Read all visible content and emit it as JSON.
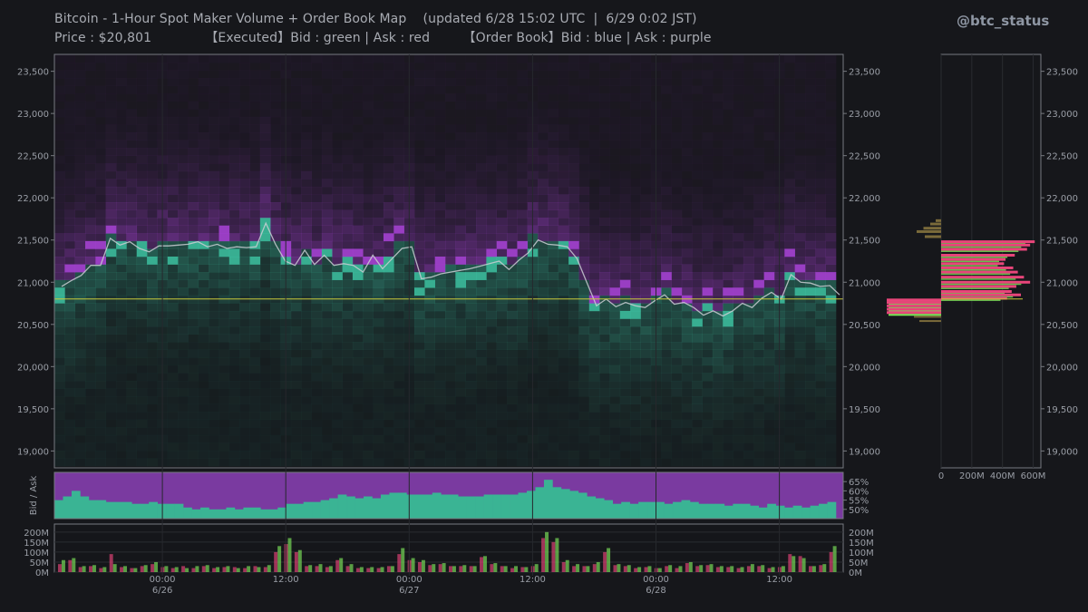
{
  "header": {
    "title": "Bitcoin - 1-Hour Spot Maker Volume + Order Book Map    (updated 6/28 15:02 UTC  |  6/29 0:02 JST)",
    "subtitle": "Price : $20,801             【Executed】Bid : green | Ask : red        【Order Book】Bid : blue | Ask : purple",
    "handle": "@btc_status"
  },
  "colors": {
    "background": "#16171b",
    "bid_executed": "#7ee85a",
    "ask_executed": "#e8457a",
    "book_bid": "#3ec9a7",
    "book_ask": "#a743d6",
    "price_line": "#c9cdd2",
    "current_price": "#c9c93a"
  },
  "chart_data": [
    {
      "id": "main",
      "type": "heatmap",
      "title": "",
      "ylim": [
        18800,
        23700
      ],
      "ytick_labels": [
        "23,500",
        "23,000",
        "22,500",
        "22,000",
        "21,500",
        "21,000",
        "20,500",
        "20,000",
        "19,500",
        "19,000"
      ],
      "yticks": [
        23500,
        23000,
        22500,
        22000,
        21500,
        21000,
        20500,
        20000,
        19500,
        19000
      ],
      "xlim": [
        0,
        76
      ],
      "current_price": 20801,
      "price_series": [
        20950,
        21020,
        21080,
        21200,
        21200,
        21520,
        21440,
        21480,
        21400,
        21360,
        21430,
        21430,
        21440,
        21450,
        21480,
        21420,
        21450,
        21400,
        21420,
        21410,
        21420,
        21700,
        21450,
        21250,
        21200,
        21380,
        21210,
        21320,
        21200,
        21220,
        21200,
        21120,
        21320,
        21160,
        21280,
        21400,
        21420,
        21040,
        21060,
        21100,
        21120,
        21140,
        21160,
        21190,
        21220,
        21250,
        21150,
        21260,
        21350,
        21500,
        21450,
        21440,
        21420,
        21280,
        21000,
        20720,
        20800,
        20710,
        20760,
        20720,
        20700,
        20780,
        20850,
        20740,
        20760,
        20700,
        20610,
        20660,
        20600,
        20660,
        20750,
        20700,
        20810,
        20880,
        20800,
        21090,
        21000,
        20990,
        20950,
        20960,
        20850
      ]
    },
    {
      "id": "book_ratio",
      "type": "area",
      "ylabel": "Bid / Ask",
      "ylim": [
        45,
        70
      ],
      "ytick_labels": [
        "65%",
        "60%",
        "55%",
        "50%"
      ],
      "yticks": [
        65,
        60,
        55,
        50
      ],
      "series": [
        {
          "values": [
            55,
            57,
            60,
            57,
            55,
            55,
            54,
            54,
            54,
            53,
            53,
            54,
            53,
            53,
            53,
            51,
            50,
            51,
            50,
            50,
            51,
            50,
            51,
            51,
            50,
            50,
            51,
            53,
            53,
            54,
            54,
            55,
            56,
            58,
            57,
            56,
            57,
            56,
            58,
            59,
            59,
            58,
            58,
            58,
            59,
            58,
            58,
            57,
            57,
            57,
            58,
            58,
            58,
            58,
            59,
            60,
            62,
            66,
            62,
            61,
            60,
            59,
            57,
            56,
            55,
            53,
            54,
            53,
            54,
            54,
            54,
            53,
            54,
            55,
            54,
            53,
            53,
            53,
            52,
            53,
            53,
            52,
            51,
            53,
            52,
            51,
            52,
            51,
            52,
            53,
            54
          ]
        }
      ]
    },
    {
      "id": "executed_volume",
      "type": "bar",
      "ylim": [
        0,
        240
      ],
      "ytick_labels": [
        "200M",
        "150M",
        "100M",
        "50M",
        "0M"
      ],
      "yticks": [
        200,
        150,
        100,
        50,
        0
      ],
      "x_tick_labels": [
        "00:00",
        "12:00",
        "00:00",
        "12:00",
        "00:00",
        "12:00"
      ],
      "x_tick_positions": [
        10,
        22,
        34,
        46,
        58,
        70
      ],
      "date_labels": [
        "6/26",
        "6/27",
        "6/28"
      ],
      "date_positions": [
        10,
        34,
        58
      ],
      "series": [
        {
          "name": "Bid",
          "values": [
            60,
            70,
            30,
            35,
            25,
            40,
            30,
            20,
            35,
            50,
            30,
            25,
            20,
            30,
            35,
            25,
            30,
            20,
            30,
            25,
            35,
            130,
            170,
            110,
            35,
            40,
            30,
            70,
            40,
            25,
            25,
            25,
            30,
            120,
            70,
            60,
            40,
            45,
            30,
            35,
            30,
            80,
            45,
            30,
            30,
            25,
            40,
            200,
            170,
            60,
            40,
            30,
            50,
            120,
            40,
            35,
            25,
            30,
            20,
            35,
            30,
            50,
            35,
            40,
            30,
            30,
            25,
            40,
            35,
            25,
            30,
            80,
            70,
            30,
            40,
            130
          ]
        },
        {
          "name": "Ask",
          "values": [
            40,
            60,
            25,
            30,
            20,
            90,
            25,
            20,
            30,
            40,
            25,
            20,
            30,
            20,
            30,
            20,
            25,
            25,
            20,
            30,
            25,
            100,
            140,
            100,
            30,
            30,
            25,
            60,
            30,
            20,
            20,
            20,
            30,
            90,
            60,
            50,
            35,
            40,
            30,
            30,
            30,
            75,
            40,
            30,
            20,
            25,
            30,
            170,
            150,
            50,
            30,
            30,
            40,
            100,
            35,
            30,
            20,
            25,
            20,
            30,
            20,
            45,
            30,
            35,
            25,
            25,
            20,
            30,
            30,
            20,
            25,
            90,
            80,
            30,
            35,
            100
          ]
        }
      ]
    },
    {
      "id": "order_book_depth",
      "type": "bar",
      "ylim": [
        18800,
        23700
      ],
      "xlim": [
        0,
        650
      ],
      "xtick_labels": [
        "0",
        "200M",
        "400M",
        "600M"
      ],
      "xticks": [
        0,
        200,
        400,
        600
      ],
      "series": [
        {
          "name": "Ask",
          "values": [
            [
              21730,
              40
            ],
            [
              21690,
              80
            ],
            [
              21640,
              130
            ],
            [
              21600,
              180
            ],
            [
              21540,
              120
            ],
            [
              21480,
              610
            ],
            [
              21440,
              580
            ],
            [
              21390,
              560
            ],
            [
              21320,
              480
            ],
            [
              21270,
              420
            ],
            [
              21220,
              410
            ],
            [
              21170,
              470
            ],
            [
              21120,
              500
            ],
            [
              21060,
              540
            ],
            [
              21000,
              580
            ],
            [
              20950,
              490
            ],
            [
              20890,
              460
            ],
            [
              20850,
              520
            ],
            [
              20810,
              430
            ]
          ]
        },
        {
          "name": "Bid",
          "values": [
            [
              20790,
              510
            ],
            [
              20760,
              380
            ],
            [
              20720,
              600
            ],
            [
              20680,
              650
            ],
            [
              20640,
              660
            ],
            [
              20590,
              300
            ],
            [
              20540,
              240
            ]
          ]
        }
      ]
    }
  ]
}
